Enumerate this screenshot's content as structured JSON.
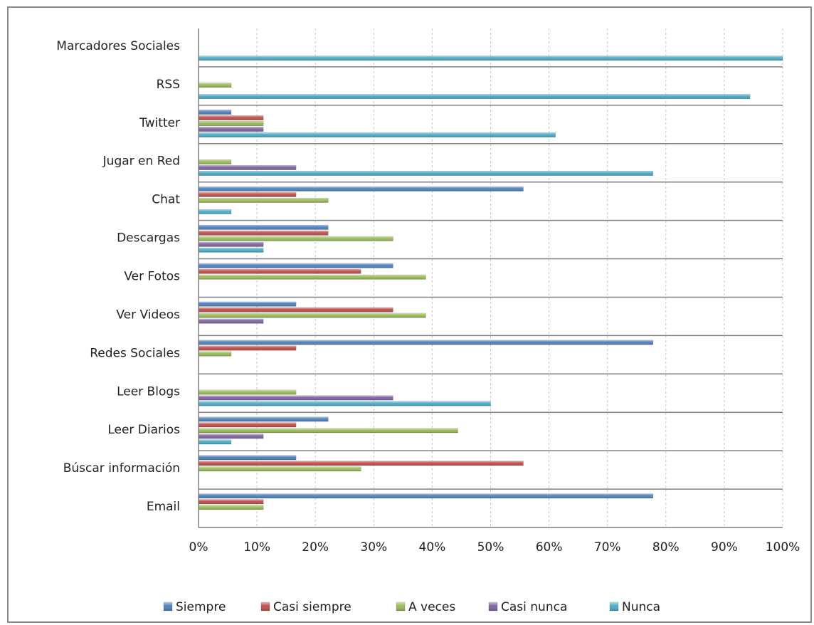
{
  "chart_data": {
    "type": "bar",
    "orientation": "horizontal",
    "categories": [
      "Email",
      "Búscar información",
      "Leer Diarios",
      "Leer Blogs",
      "Redes Sociales",
      "Ver Videos",
      "Ver Fotos",
      "Descargas",
      "Chat",
      "Jugar en Red",
      "Twitter",
      "RSS",
      "Marcadores Sociales"
    ],
    "series": [
      {
        "name": "Siempre",
        "color": "#4f81bd",
        "values": [
          77.8,
          16.7,
          22.2,
          0,
          77.8,
          16.7,
          33.3,
          22.2,
          55.6,
          0,
          5.6,
          0,
          0
        ]
      },
      {
        "name": "Casi siempre",
        "color": "#c0504d",
        "values": [
          11.1,
          55.6,
          16.7,
          0,
          16.7,
          33.3,
          27.8,
          22.2,
          16.7,
          0,
          11.1,
          0,
          0
        ]
      },
      {
        "name": "A veces",
        "color": "#9bbb59",
        "values": [
          11.1,
          27.8,
          44.4,
          16.7,
          5.6,
          38.9,
          38.9,
          33.3,
          22.2,
          5.6,
          11.1,
          5.6,
          0
        ]
      },
      {
        "name": "Casi nunca",
        "color": "#8064a2",
        "values": [
          0,
          0,
          11.1,
          33.3,
          0,
          11.1,
          0,
          11.1,
          0,
          16.7,
          11.1,
          0,
          0
        ]
      },
      {
        "name": "Nunca",
        "color": "#4bacc6",
        "values": [
          0,
          0,
          5.6,
          50,
          0,
          0,
          0,
          11.1,
          5.6,
          77.8,
          61.1,
          94.4,
          100
        ]
      }
    ],
    "xlim": [
      0,
      100
    ],
    "xticks": [
      "0%",
      "10%",
      "20%",
      "30%",
      "40%",
      "50%",
      "60%",
      "70%",
      "80%",
      "90%",
      "100%"
    ],
    "grid": true,
    "legend_position": "bottom"
  }
}
